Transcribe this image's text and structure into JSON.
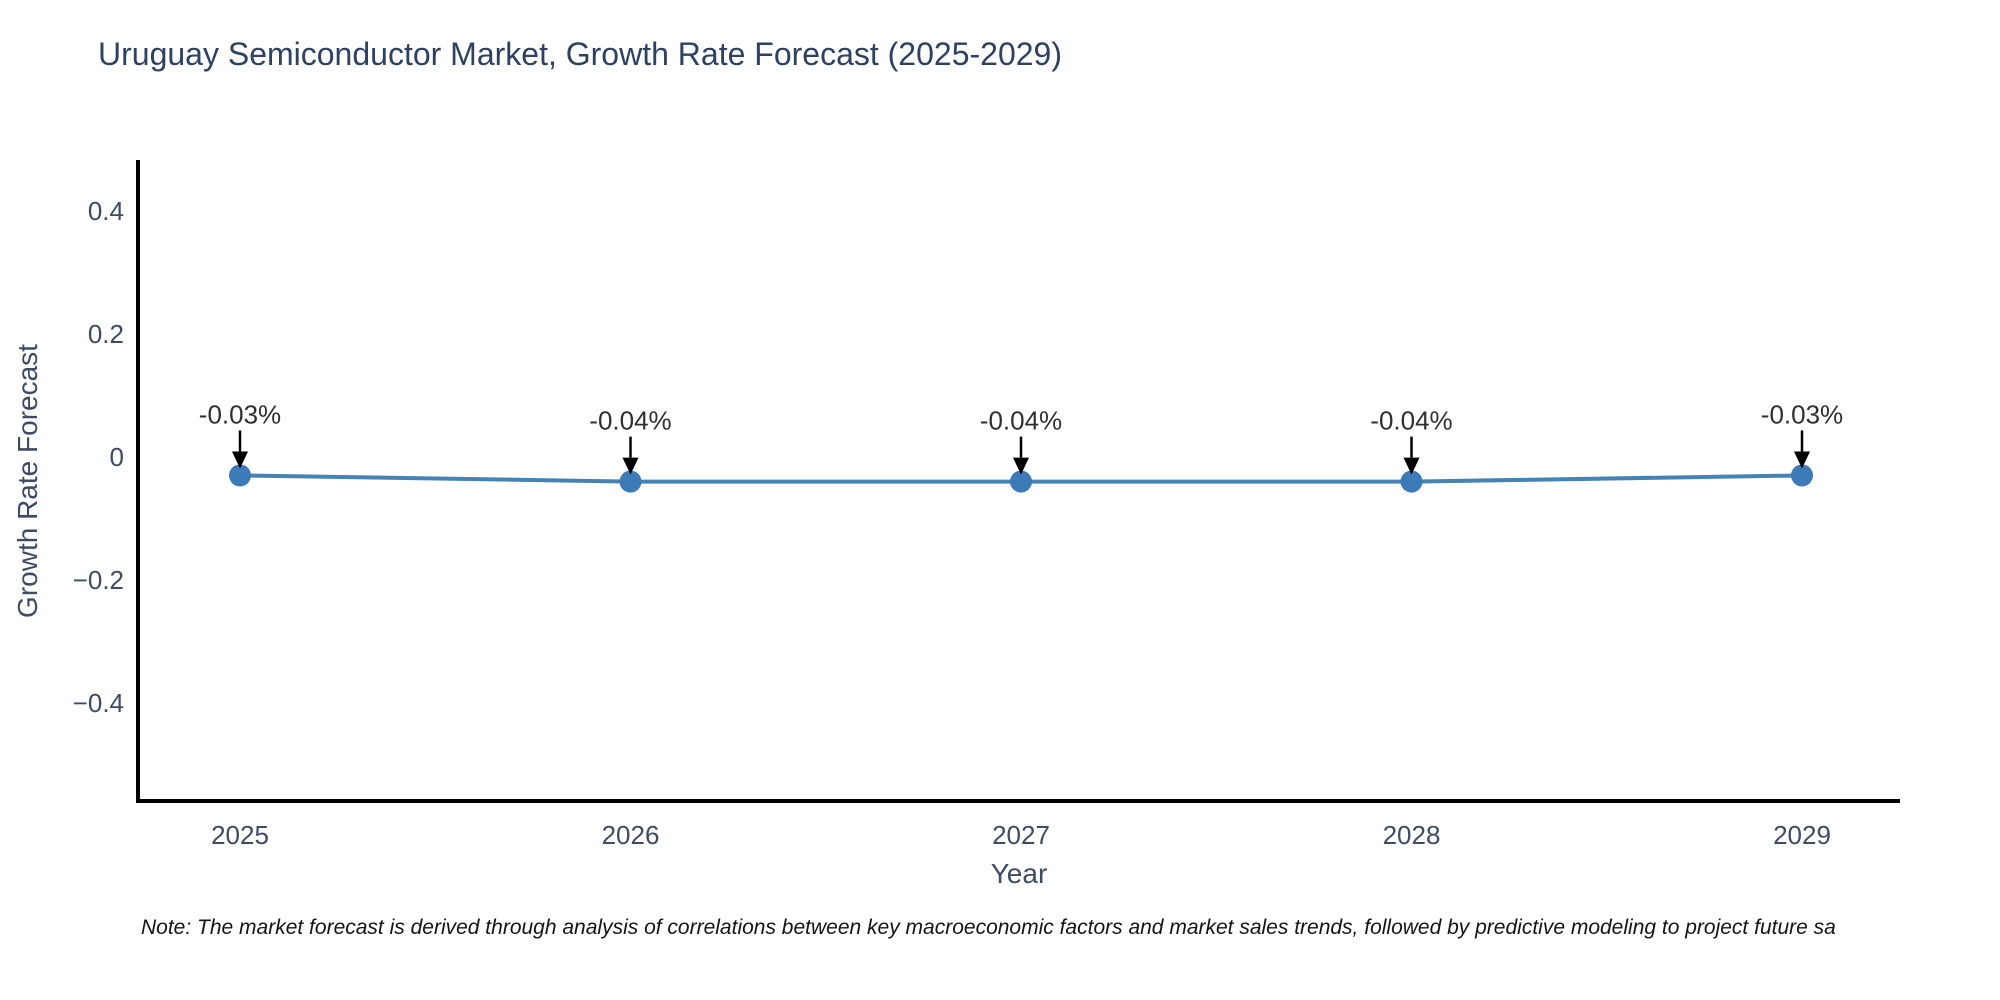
{
  "chart": {
    "title": "Uruguay Semiconductor Market, Growth Rate Forecast (2025-2029)",
    "xlabel": "Year",
    "ylabel": "Growth Rate Forecast"
  },
  "note": {
    "text": "Note: The market forecast is derived through analysis of correlations between key macroeconomic factors and market sales trends, followed by predictive modeling to project future sa"
  },
  "colors": {
    "line": "#4682b4",
    "marker": "#3d7ab8",
    "axis": "#000000",
    "arrow": "#000000",
    "title_text": "#2e4161",
    "tick_text": "#3f4b63",
    "annotation_text": "#2f2f2f",
    "background": "#ffffff"
  },
  "chart_data": {
    "type": "line",
    "title": "Uruguay Semiconductor Market, Growth Rate Forecast (2025-2029)",
    "xlabel": "Year",
    "ylabel": "Growth Rate Forecast",
    "x": [
      2025,
      2026,
      2027,
      2028,
      2029
    ],
    "values": [
      -0.03,
      -0.04,
      -0.04,
      -0.04,
      -0.03
    ],
    "point_labels": [
      "-0.03%",
      "-0.04%",
      "-0.04%",
      "-0.04%",
      "-0.03%"
    ],
    "xticks": [
      "2025",
      "2026",
      "2027",
      "2028",
      "2029"
    ],
    "yticks": {
      "values": [
        0.4,
        0.2,
        0,
        -0.2,
        -0.4
      ],
      "labels": [
        "0.4",
        "0.2",
        "0",
        "−0.2",
        "−0.4"
      ]
    },
    "ylim": [
      -0.56,
      0.48
    ],
    "grid": false,
    "legend_position": "none",
    "series_name": "Growth Rate Forecast",
    "annotation_style": "arrow-down-to-point"
  }
}
